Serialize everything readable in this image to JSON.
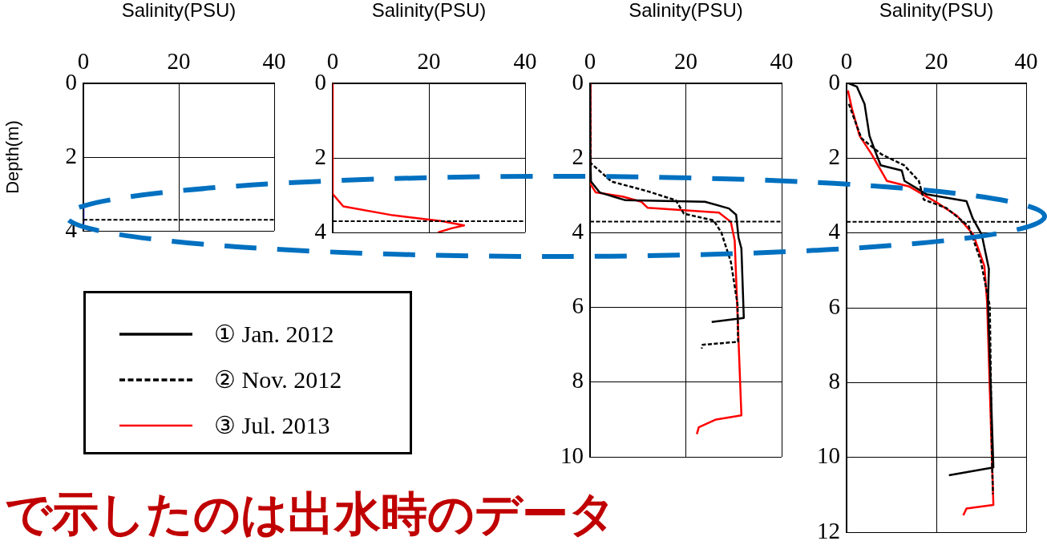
{
  "chart_data": [
    {
      "type": "line",
      "xlabel": "Salinity(PSU)",
      "ylabel": "Depth(m)",
      "xlim": [
        0,
        40
      ],
      "xticks": [
        0,
        20,
        40
      ],
      "ylim": [
        4,
        0
      ],
      "yticks": [
        0,
        2,
        4
      ],
      "grid": true,
      "marker": "none",
      "series": [
        {
          "color": "#000080",
          "x": [
            0,
            0
          ],
          "values": [
            3.4,
            3.8
          ]
        }
      ],
      "ref_lines": [
        {
          "axis": "y",
          "value": 3.7,
          "color": "#000000",
          "line_style": "dashed"
        }
      ],
      "annotations": [
        "で示したのは出水時のデータ"
      ]
    },
    {
      "type": "line",
      "xlabel": "Salinity(PSU)",
      "xlim": [
        0,
        40
      ],
      "xticks": [
        0,
        20,
        40
      ],
      "ylim": [
        4,
        0
      ],
      "yticks": [
        0,
        2,
        4
      ],
      "grid": true,
      "marker": "none",
      "series": [
        {
          "color": "#ff0000",
          "x": [
            0,
            0,
            2.2,
            12.5,
            22.8,
            27.3,
            24.7,
            21.9
          ],
          "values": [
            0,
            2.97,
            3.3,
            3.54,
            3.7,
            3.81,
            3.89,
            4.0
          ]
        }
      ],
      "ref_lines": [
        {
          "axis": "y",
          "value": 3.7,
          "color": "#000000",
          "line_style": "dashed"
        }
      ]
    },
    {
      "type": "line",
      "xlabel": "Salinity(PSU)",
      "xlim": [
        0,
        40
      ],
      "xticks": [
        0,
        20,
        40
      ],
      "ylim": [
        10,
        0
      ],
      "yticks": [
        0,
        2,
        4,
        6,
        8,
        10
      ],
      "grid": true,
      "marker": "none",
      "legend": "left",
      "series": [
        {
          "name": "① Jan. 2012",
          "color": "#000000",
          "line_style": "solid",
          "x": [
            0,
            0,
            0.2,
            2,
            7.4,
            24,
            29,
            30.5,
            31,
            31.6,
            32.1,
            25.4
          ],
          "values": [
            0,
            1.8,
            2.63,
            2.92,
            3.13,
            3.17,
            3.35,
            3.52,
            4.13,
            4.42,
            6.28,
            6.39
          ]
        },
        {
          "name": "② Nov. 2012",
          "color": "#000000",
          "line_style": "dashed",
          "x": [
            0,
            0.1,
            4.5,
            11.8,
            17.9,
            19.6,
            25.8,
            27.4,
            29.4,
            30.8,
            30.9,
            23.5,
            23.3
          ],
          "values": [
            0,
            2.13,
            2.63,
            2.88,
            3.13,
            3.49,
            3.67,
            3.99,
            4.78,
            5.92,
            6.92,
            7.0,
            7.1
          ]
        },
        {
          "name": "③ Jul. 2013",
          "color": "#ff0000",
          "line_style": "solid",
          "x": [
            0,
            0.1,
            1.2,
            6.8,
            10.7,
            12,
            26.9,
            29.4,
            30.2,
            31.6,
            26.3,
            22.7,
            22.3
          ],
          "values": [
            0,
            2.7,
            2.92,
            3.03,
            3.17,
            3.33,
            3.46,
            3.71,
            4.21,
            8.89,
            9.0,
            9.21,
            9.39
          ]
        }
      ],
      "ref_lines": [
        {
          "axis": "y",
          "value": 3.7,
          "color": "#000000",
          "line_style": "dashed"
        }
      ]
    },
    {
      "type": "line",
      "xlabel": "Salinity(PSU)",
      "xlim": [
        0,
        40
      ],
      "xticks": [
        0,
        20,
        40
      ],
      "ylim": [
        12,
        0
      ],
      "yticks": [
        0,
        2,
        4,
        6,
        8,
        10,
        12
      ],
      "grid": true,
      "marker": "none",
      "series": [
        {
          "color": "#000000",
          "line_style": "solid",
          "x": [
            0.5,
            2.3,
            4,
            5.1,
            6.2,
            7.6,
            12.3,
            12.9,
            17.9,
            26.7,
            28.1,
            30.1,
            31.7,
            31.5,
            32.7,
            22.8
          ],
          "values": [
            0,
            0.09,
            0.55,
            1.4,
            1.76,
            2.19,
            2.33,
            2.61,
            2.97,
            3.15,
            3.61,
            4.04,
            4.96,
            5.85,
            10.27,
            10.48
          ]
        },
        {
          "color": "#000000",
          "line_style": "dashed",
          "x": [
            0.5,
            3.3,
            7.8,
            12.8,
            16.1,
            17.2,
            22.2,
            27.2,
            29.9,
            31.9,
            32.4,
            32.6
          ],
          "values": [
            0.55,
            1.47,
            1.9,
            2.19,
            2.61,
            3.11,
            3.33,
            3.82,
            4.75,
            5.96,
            10.13,
            10.98
          ]
        },
        {
          "color": "#ff0000",
          "line_style": "solid",
          "x": [
            0.3,
            1.2,
            2.9,
            5.6,
            9,
            14,
            20,
            24.6,
            28.2,
            30.7,
            31.3,
            32.7,
            26.7,
            26
          ],
          "values": [
            0.19,
            0.68,
            1.4,
            1.9,
            2.61,
            2.76,
            3.18,
            3.54,
            4.04,
            4.89,
            5.85,
            11.27,
            11.37,
            11.55
          ]
        }
      ],
      "ref_lines": [
        {
          "axis": "y",
          "value": 3.7,
          "color": "#000000",
          "line_style": "dashed"
        }
      ]
    }
  ]
}
